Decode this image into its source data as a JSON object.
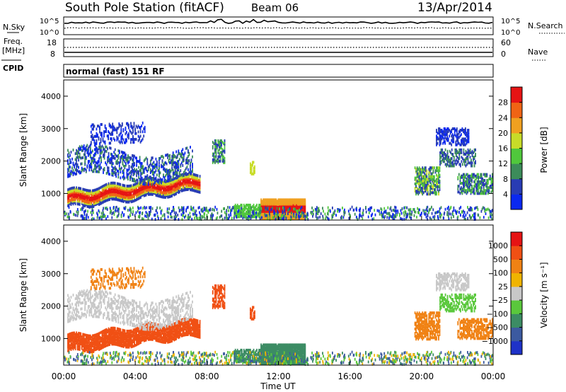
{
  "header": {
    "title": "South Pole Station (fitACF)",
    "beam": "Beam 06",
    "date": "13/Apr/2014"
  },
  "noise_panel": {
    "left_label": "N.Sky",
    "right_label": "N.Search",
    "y_ticks_left": [
      "10^5",
      "10^0"
    ],
    "y_ticks_right": [
      "10^5",
      "10^0"
    ]
  },
  "freq_panel": {
    "left_label_line1": "Freq.",
    "left_label_line2": "[MHz]",
    "right_label": "Nave",
    "y_ticks_left": [
      "18",
      "8"
    ],
    "y_ticks_right": [
      "60",
      "0"
    ]
  },
  "cpid": {
    "label": "CPID",
    "value": "normal (fast) 151 RF"
  },
  "chart_data": [
    {
      "type": "heatmap",
      "name": "power",
      "ylabel": "Slant Range [km]",
      "ylim": [
        180,
        4500
      ],
      "yticks": [
        "1000",
        "2000",
        "3000",
        "4000"
      ],
      "colorbar_label": "Power [dB]",
      "colorbar_ticks": [
        "4",
        "8",
        "12",
        "16",
        "20",
        "24",
        "28"
      ],
      "colors": [
        "#0a28f0",
        "#283cb4",
        "#3c8c5a",
        "#50c83c",
        "#c8dc28",
        "#f0a020",
        "#f06414",
        "#e61414"
      ]
    },
    {
      "type": "heatmap",
      "name": "velocity",
      "ylabel": "Slant Range [km]",
      "ylim": [
        180,
        4500
      ],
      "yticks": [
        "1000",
        "2000",
        "3000",
        "4000"
      ],
      "colorbar_label": "Velocity [m s⁻¹]",
      "colorbar_ticks": [
        "1000",
        "500",
        "100",
        "25",
        "−25",
        "−100",
        "−500",
        "−1000"
      ],
      "colors": [
        "#1e32c8",
        "#3c5aa0",
        "#3c8c64",
        "#5ac83c",
        "#c8c8c8",
        "#f0b400",
        "#f08214",
        "#f05014",
        "#e61414"
      ]
    }
  ],
  "x_axis": {
    "label": "Time UT",
    "ticks": [
      "00:00",
      "04:00",
      "08:00",
      "12:00",
      "16:00",
      "20:00",
      "00:00"
    ]
  }
}
